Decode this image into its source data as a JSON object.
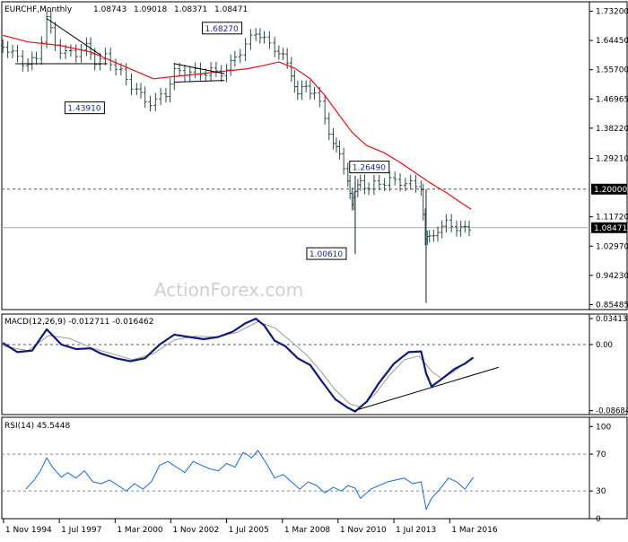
{
  "chart_data": [
    {
      "panel": "price",
      "type": "line",
      "title": "EURCHF,Monthly",
      "ohlc_header": [
        "1.08743",
        "1.09018",
        "1.08371",
        "1.08471"
      ],
      "watermark": "ActionForex.com",
      "ylim": [
        0.84,
        1.76
      ],
      "y_ticks": [
        "1.73200",
        "1.64450",
        "1.55700",
        "1.46965",
        "1.38220",
        "1.29210",
        "1.11720",
        "1.02970",
        "0.94230",
        "0.85485"
      ],
      "y_tick_values": [
        1.732,
        1.6445,
        1.557,
        1.46965,
        1.3822,
        1.2921,
        1.1172,
        1.0297,
        0.9423,
        0.85485
      ],
      "x_ticks": [
        "1 Nov 1994",
        "1 Jul 1997",
        "1 Mar 2000",
        "1 Nov 2002",
        "1 Jul 2005",
        "1 Mar 2008",
        "1 Nov 2010",
        "1 Jul 2013",
        "1 Mar 2016"
      ],
      "x_tick_values": [
        1994.83,
        1997.5,
        2000.17,
        2002.83,
        2005.5,
        2008.17,
        2010.83,
        2013.5,
        2016.17
      ],
      "xlim": [
        1994.75,
        2022.85
      ],
      "price_series": {
        "x": [
          1994.8,
          1995.5,
          1996.0,
          1996.4,
          1996.9,
          1997.3,
          1997.8,
          1998.3,
          1998.8,
          1999.2,
          1999.7,
          2000.2,
          2000.7,
          2001.2,
          2001.6,
          2002.1,
          2002.6,
          2003.0,
          2003.5,
          2004.0,
          2004.5,
          2005.0,
          2005.5,
          2005.9,
          2006.4,
          2006.9,
          2007.3,
          2007.8,
          2008.2,
          2008.6,
          2008.9,
          2009.3,
          2009.7,
          2010.2,
          2010.6,
          2010.9,
          2011.3,
          2011.5,
          2011.65,
          2011.9,
          2012.3,
          2012.8,
          2013.3,
          2013.8,
          2014.3,
          2014.8,
          2015.0,
          2015.2,
          2015.6,
          2016.0,
          2016.5,
          2016.9,
          2017.3
        ],
        "y": [
          1.63,
          1.6,
          1.57,
          1.58,
          1.71,
          1.64,
          1.61,
          1.6,
          1.62,
          1.59,
          1.6,
          1.56,
          1.52,
          1.5,
          1.47,
          1.46,
          1.48,
          1.55,
          1.56,
          1.55,
          1.54,
          1.55,
          1.56,
          1.6,
          1.62,
          1.67,
          1.65,
          1.63,
          1.59,
          1.54,
          1.48,
          1.51,
          1.5,
          1.41,
          1.33,
          1.29,
          1.24,
          1.16,
          1.19,
          1.23,
          1.2,
          1.21,
          1.23,
          1.23,
          1.21,
          1.2,
          1.04,
          1.05,
          1.09,
          1.1,
          1.08,
          1.07,
          1.085
        ]
      },
      "series": [
        {
          "name": "moving-average",
          "color": "#e0101a",
          "x": [
            1994.8,
            1996.0,
            1997.5,
            1999.0,
            2000.5,
            2002.0,
            2003.5,
            2005.0,
            2006.5,
            2007.3,
            2008.0,
            2008.8,
            2009.5,
            2010.2,
            2010.9,
            2011.5,
            2012.2,
            2013.0,
            2013.8,
            2014.5,
            2015.2,
            2016.0,
            2016.7,
            2017.2
          ],
          "y": [
            1.66,
            1.64,
            1.63,
            1.61,
            1.57,
            1.53,
            1.54,
            1.55,
            1.56,
            1.57,
            1.58,
            1.56,
            1.53,
            1.48,
            1.42,
            1.37,
            1.33,
            1.31,
            1.28,
            1.25,
            1.22,
            1.19,
            1.16,
            1.14
          ]
        }
      ],
      "dashed_level": 1.2,
      "current_value": 1.08471,
      "horizontal_label": "1.20000",
      "current_label": "1.08471",
      "low_spike": {
        "x": 2015.04,
        "y": 0.86
      },
      "low_spike_2": {
        "x": 2011.65,
        "y": 1.0061
      },
      "annotations": [
        {
          "text": "1.68270",
          "x": 2006.4,
          "y": 1.6827
        },
        {
          "text": "1.43910",
          "x": 1999.4,
          "y": 1.4391
        },
        {
          "text": "1.26490",
          "x": 2011.6,
          "y": 1.2649
        },
        {
          "text": "1.00610",
          "x": 2011.65,
          "y": 1.0061
        }
      ],
      "trendlines": [
        {
          "x": [
            1996.9,
            1999.5
          ],
          "y": [
            1.71,
            1.6
          ]
        },
        {
          "x": [
            1995.4,
            1999.8
          ],
          "y": [
            1.575,
            1.575
          ]
        },
        {
          "x": [
            2003.0,
            2005.4
          ],
          "y": [
            1.575,
            1.545
          ]
        },
        {
          "x": [
            2003.0,
            2005.4
          ],
          "y": [
            1.52,
            1.525
          ]
        }
      ],
      "grid": false
    },
    {
      "panel": "macd",
      "type": "line",
      "title": "MACD(12,26,9) -0.012711 -0.016462",
      "ylim": [
        -0.092,
        0.04
      ],
      "y_ticks": [
        "0.034137",
        "0.00",
        "-0.086849"
      ],
      "y_tick_values": [
        0.034137,
        0.0,
        -0.086849
      ],
      "zero_line": 0.0,
      "series": [
        {
          "name": "macd",
          "color": "#101a7a",
          "x": [
            1994.8,
            1995.5,
            1996.2,
            1996.9,
            1997.6,
            1998.3,
            1999.0,
            1999.5,
            2000.2,
            2000.9,
            2001.6,
            2002.3,
            2003.0,
            2003.7,
            2004.4,
            2005.1,
            2005.8,
            2006.4,
            2006.9,
            2007.3,
            2007.8,
            2008.3,
            2008.9,
            2009.5,
            2010.1,
            2010.7,
            2011.3,
            2011.65,
            2012.2,
            2012.8,
            2013.5,
            2014.2,
            2014.8,
            2015.04,
            2015.3,
            2015.8,
            2016.4,
            2016.9,
            2017.3
          ],
          "y": [
            0.002,
            -0.01,
            -0.008,
            0.02,
            0.0,
            -0.006,
            -0.005,
            -0.012,
            -0.018,
            -0.022,
            -0.018,
            0.0,
            0.013,
            0.01,
            0.007,
            0.01,
            0.017,
            0.028,
            0.034,
            0.025,
            0.005,
            -0.002,
            -0.018,
            -0.027,
            -0.05,
            -0.072,
            -0.083,
            -0.088,
            -0.075,
            -0.05,
            -0.025,
            -0.01,
            -0.009,
            -0.038,
            -0.055,
            -0.045,
            -0.032,
            -0.025,
            -0.017
          ]
        },
        {
          "name": "signal",
          "color": "#9a9a9a",
          "x": [
            1994.8,
            1996.0,
            1997.0,
            1998.0,
            1999.0,
            2000.0,
            2001.0,
            2002.0,
            2003.0,
            2004.0,
            2005.0,
            2006.0,
            2007.0,
            2007.8,
            2008.5,
            2009.3,
            2010.0,
            2010.7,
            2011.4,
            2011.9,
            2012.6,
            2013.3,
            2014.0,
            2014.7,
            2015.3,
            2015.8,
            2016.4,
            2017.0,
            2017.3
          ],
          "y": [
            -0.002,
            -0.008,
            0.012,
            0.008,
            -0.004,
            -0.012,
            -0.02,
            -0.012,
            0.006,
            0.011,
            0.01,
            0.016,
            0.03,
            0.022,
            0.006,
            -0.013,
            -0.035,
            -0.06,
            -0.078,
            -0.082,
            -0.065,
            -0.04,
            -0.02,
            -0.015,
            -0.035,
            -0.045,
            -0.035,
            -0.022,
            -0.017
          ]
        }
      ],
      "trendline": {
        "x": [
          2011.6,
          2018.5
        ],
        "y": [
          -0.087,
          -0.03
        ]
      }
    },
    {
      "panel": "rsi",
      "type": "line",
      "title": "RSI(14) 45.5448",
      "ylim": [
        0,
        110
      ],
      "y_ticks": [
        "100",
        "70",
        "30",
        "0"
      ],
      "y_tick_values": [
        100,
        70,
        30,
        0
      ],
      "dashed_levels": [
        70,
        30
      ],
      "series": [
        {
          "name": "rsi",
          "color": "#1a6ad0",
          "x": [
            1995.9,
            1996.3,
            1996.6,
            1996.9,
            1997.2,
            1997.6,
            1997.9,
            1998.3,
            1998.7,
            1999.1,
            1999.5,
            1999.9,
            2000.3,
            2000.7,
            2001.1,
            2001.5,
            2001.9,
            2002.3,
            2002.7,
            2003.1,
            2003.5,
            2003.9,
            2004.3,
            2004.7,
            2005.1,
            2005.5,
            2005.9,
            2006.3,
            2006.7,
            2007.0,
            2007.4,
            2007.8,
            2008.2,
            2008.6,
            2009.0,
            2009.4,
            2009.8,
            2010.2,
            2010.6,
            2011.0,
            2011.3,
            2011.65,
            2011.9,
            2012.4,
            2012.8,
            2013.2,
            2013.6,
            2014.0,
            2014.4,
            2014.8,
            2015.04,
            2015.3,
            2015.7,
            2016.1,
            2016.5,
            2016.9,
            2017.3
          ],
          "y": [
            32,
            42,
            52,
            66,
            55,
            45,
            50,
            44,
            52,
            40,
            38,
            42,
            36,
            30,
            38,
            32,
            40,
            58,
            62,
            56,
            50,
            62,
            58,
            54,
            52,
            60,
            56,
            72,
            66,
            74,
            60,
            44,
            48,
            40,
            32,
            40,
            36,
            28,
            34,
            30,
            36,
            33,
            22,
            32,
            36,
            40,
            42,
            44,
            38,
            40,
            10,
            22,
            32,
            44,
            40,
            32,
            45
          ]
        }
      ]
    }
  ]
}
